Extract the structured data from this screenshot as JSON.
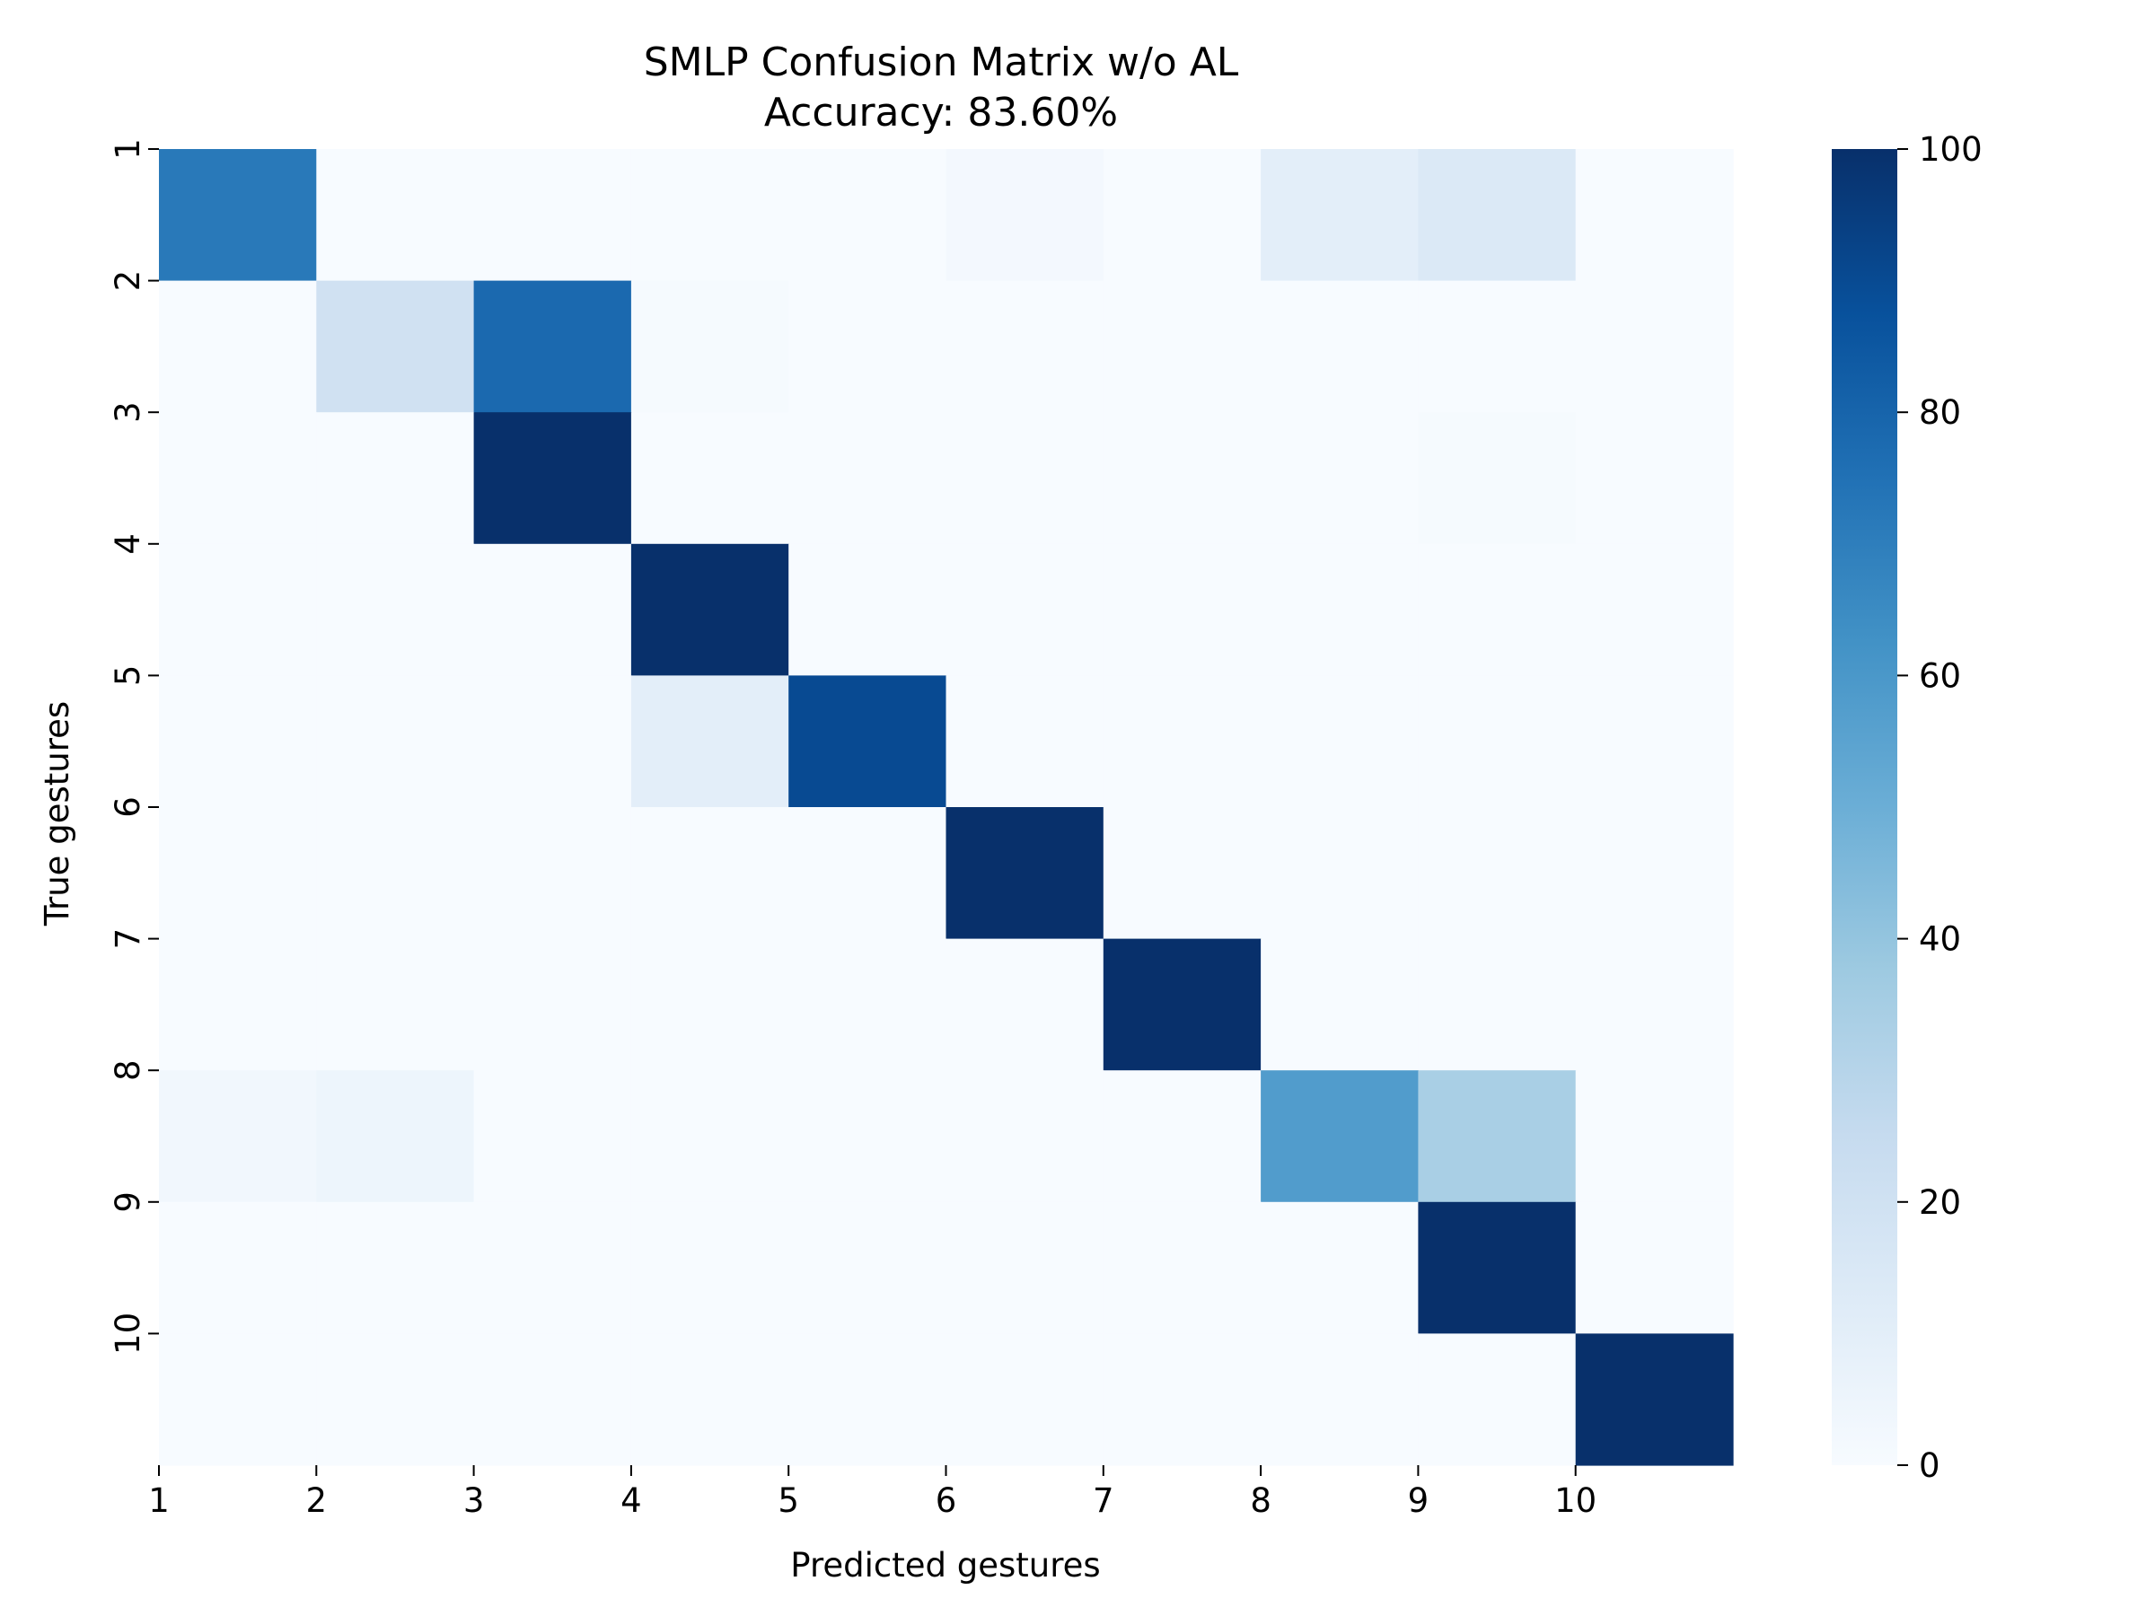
{
  "chart_data": {
    "type": "heatmap",
    "title": "SMLP Confusion Matrix w/o AL",
    "subtitle": "Accuracy: 83.60%",
    "xlabel": "Predicted gestures",
    "ylabel": "True gestures",
    "x_tick_labels": [
      "1",
      "2",
      "3",
      "4",
      "5",
      "6",
      "7",
      "8",
      "9",
      "10"
    ],
    "y_tick_labels": [
      "1",
      "2",
      "3",
      "4",
      "5",
      "6",
      "7",
      "8",
      "9",
      "10"
    ],
    "n_rows": 10,
    "n_cols": 10,
    "matrix": [
      [
        72,
        0,
        0,
        0,
        0,
        2,
        0,
        10,
        14,
        0
      ],
      [
        0,
        20,
        78,
        1,
        0,
        0,
        0,
        0,
        0,
        0
      ],
      [
        0,
        0,
        100,
        0,
        0,
        0,
        0,
        0,
        1,
        0
      ],
      [
        0,
        0,
        0,
        100,
        0,
        0,
        0,
        0,
        0,
        0
      ],
      [
        0,
        0,
        0,
        10,
        90,
        0,
        0,
        0,
        0,
        0
      ],
      [
        0,
        0,
        0,
        0,
        0,
        100,
        0,
        0,
        0,
        0
      ],
      [
        0,
        0,
        0,
        0,
        0,
        0,
        100,
        0,
        0,
        0
      ],
      [
        3,
        5,
        0,
        0,
        0,
        0,
        0,
        58,
        34,
        0
      ],
      [
        0,
        0,
        0,
        0,
        0,
        0,
        0,
        0,
        100,
        0
      ],
      [
        0,
        0,
        0,
        0,
        0,
        0,
        0,
        0,
        0,
        100
      ]
    ],
    "colorbar": {
      "min": 0,
      "max": 100,
      "ticks": [
        0,
        20,
        40,
        60,
        80,
        100
      ],
      "colormap": "Blues",
      "stops": [
        "#f7fbff",
        "#deebf7",
        "#c6dbef",
        "#9ecae1",
        "#6baed6",
        "#4292c6",
        "#2171b5",
        "#08519c",
        "#08306b"
      ]
    },
    "grid": false
  }
}
